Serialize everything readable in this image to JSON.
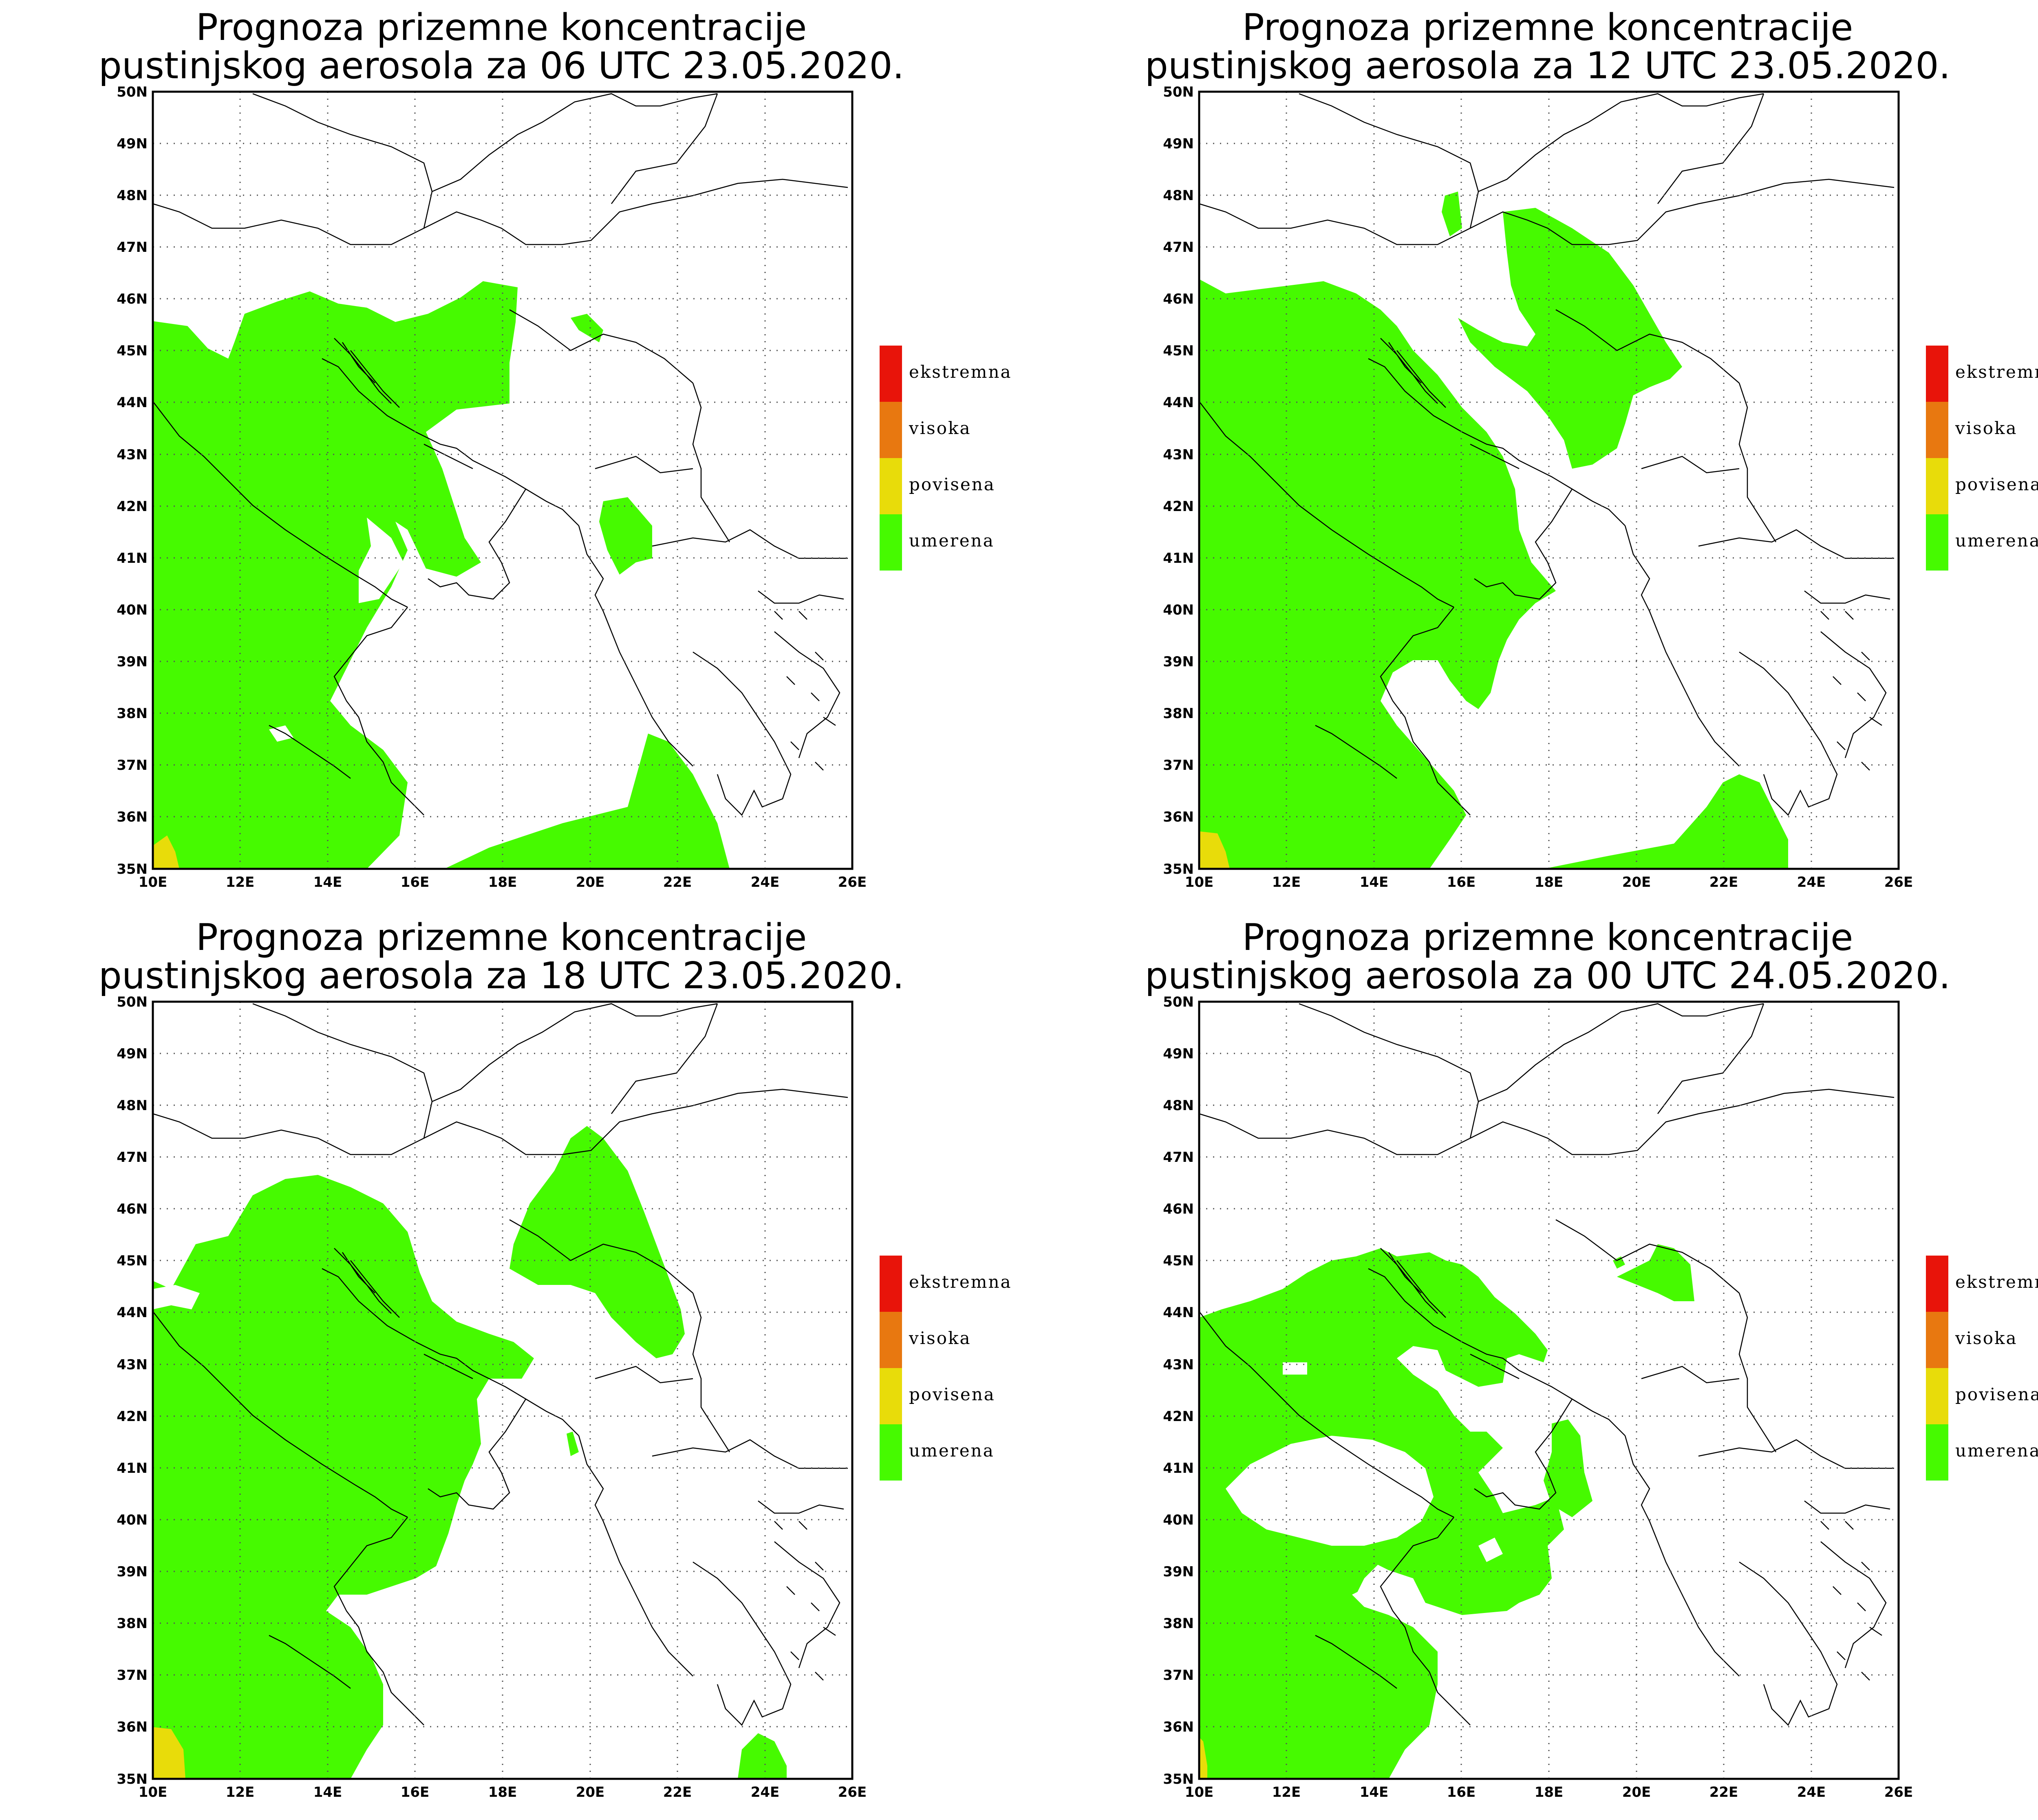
{
  "panels": [
    {
      "title_line1": "Prognoza prizemne koncentracije",
      "title_line2": "pustinjskog aerosola za 06 UTC 23.05.2020."
    },
    {
      "title_line1": "Prognoza prizemne koncentracije",
      "title_line2": "pustinjskog aerosola za 12 UTC 23.05.2020."
    },
    {
      "title_line1": "Prognoza prizemne koncentracije",
      "title_line2": "pustinjskog aerosola za 18 UTC 23.05.2020."
    },
    {
      "title_line1": "Prognoza prizemne koncentracije",
      "title_line2": "pustinjskog aerosola za 00 UTC 24.05.2020."
    }
  ],
  "lat_labels": [
    "50N",
    "49N",
    "48N",
    "47N",
    "46N",
    "45N",
    "44N",
    "43N",
    "42N",
    "41N",
    "40N",
    "39N",
    "38N",
    "37N",
    "36N",
    "35N"
  ],
  "lon_labels": [
    "10E",
    "12E",
    "14E",
    "16E",
    "18E",
    "20E",
    "22E",
    "24E",
    "26E"
  ],
  "legend": [
    {
      "label": "ekstremna",
      "color": "#e8140a"
    },
    {
      "label": "visoka",
      "color": "#e87810"
    },
    {
      "label": "povisena",
      "color": "#e8dc0a"
    },
    {
      "label": "umerena",
      "color": "#46fa00"
    }
  ],
  "colors": {
    "umerena": "#46fa00",
    "povisena": "#e8dc0a"
  }
}
